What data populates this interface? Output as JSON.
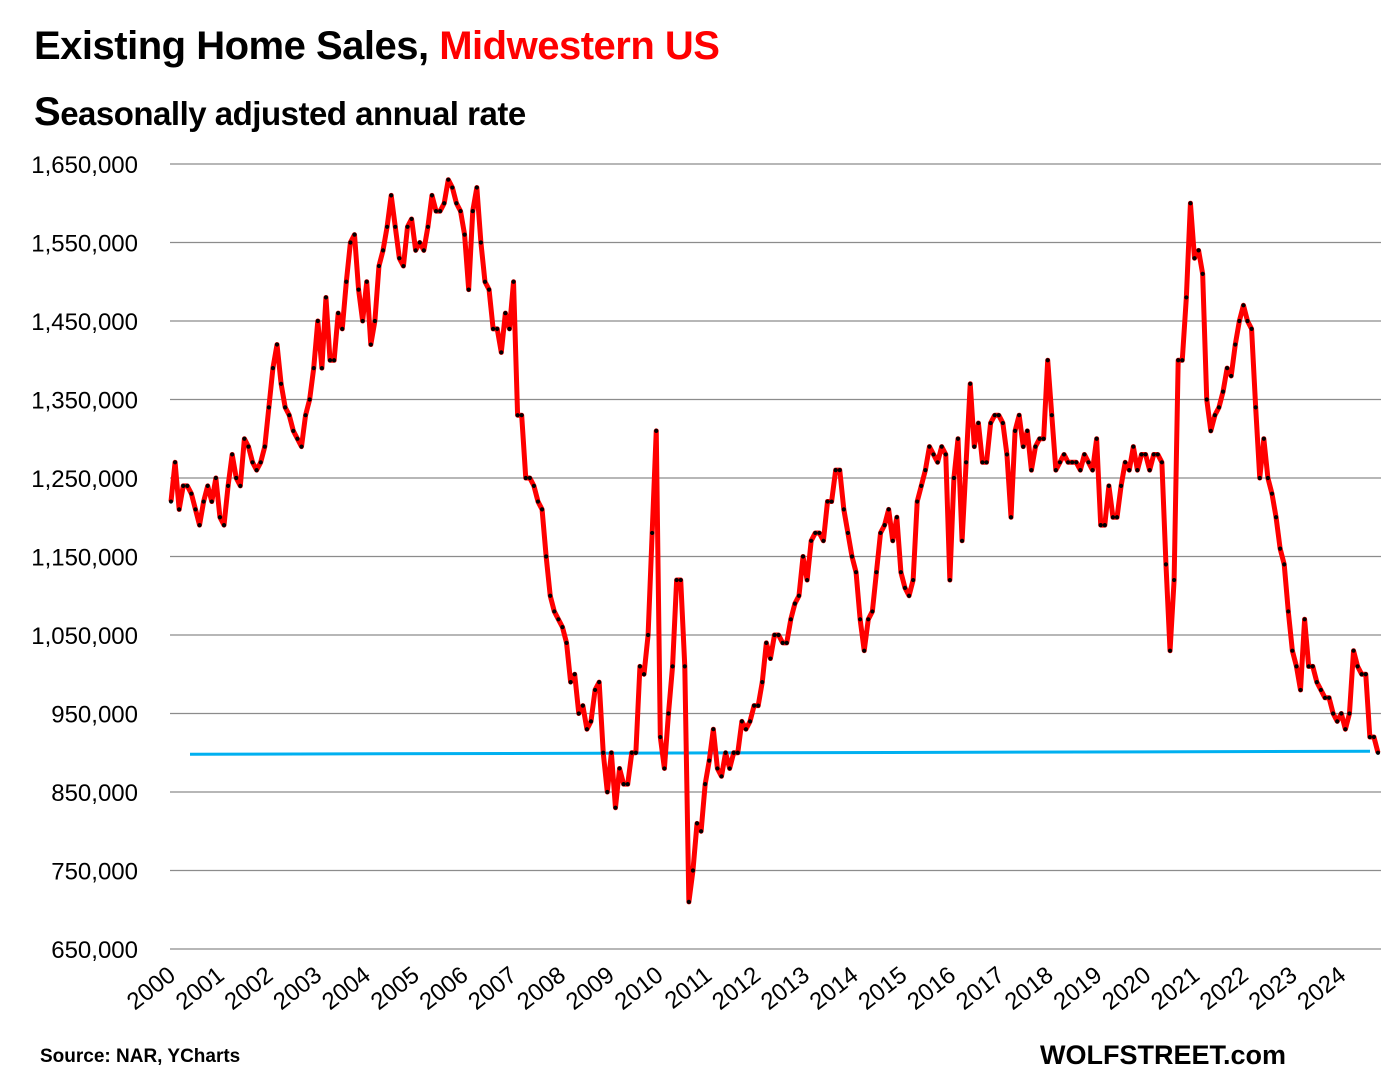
{
  "title": {
    "main": "Existing Home Sales,",
    "accent": "Midwestern US",
    "accent_color": "#ff0000"
  },
  "subtitle": {
    "first_letter": "S",
    "rest": "easonally adjusted annual rate"
  },
  "source": "Source: NAR, YCharts",
  "brand": "WOLFSTREET.com",
  "chart_data": {
    "type": "line",
    "ylim": [
      650000,
      1650000
    ],
    "yticks": [
      650000,
      750000,
      850000,
      950000,
      1050000,
      1150000,
      1250000,
      1350000,
      1450000,
      1550000,
      1650000
    ],
    "ytick_labels": [
      "650,000",
      "750,000",
      "850,000",
      "950,000",
      "1,050,000",
      "1,150,000",
      "1,250,000",
      "1,350,000",
      "1,450,000",
      "1,550,000",
      "1,650,000"
    ],
    "xtick_labels": [
      "2000",
      "2001",
      "2002",
      "2003",
      "2004",
      "2005",
      "2006",
      "2007",
      "2008",
      "2009",
      "2010",
      "2011",
      "2012",
      "2013",
      "2014",
      "2015",
      "2016",
      "2017",
      "2018",
      "2019",
      "2020",
      "2021",
      "2022",
      "2023",
      "2024"
    ],
    "grid": true,
    "legend": "none",
    "series_color": "#ff0000",
    "marker_color": "#000000",
    "reference_line": {
      "value": 900000,
      "color": "#00b0f0"
    },
    "values": [
      1220000,
      1270000,
      1210000,
      1240000,
      1240000,
      1230000,
      1210000,
      1190000,
      1220000,
      1240000,
      1220000,
      1250000,
      1200000,
      1190000,
      1240000,
      1280000,
      1250000,
      1240000,
      1300000,
      1290000,
      1270000,
      1260000,
      1270000,
      1290000,
      1340000,
      1390000,
      1420000,
      1370000,
      1340000,
      1330000,
      1310000,
      1300000,
      1290000,
      1330000,
      1350000,
      1390000,
      1450000,
      1390000,
      1480000,
      1400000,
      1400000,
      1460000,
      1440000,
      1500000,
      1550000,
      1560000,
      1490000,
      1450000,
      1500000,
      1420000,
      1450000,
      1520000,
      1540000,
      1570000,
      1610000,
      1570000,
      1530000,
      1520000,
      1570000,
      1580000,
      1540000,
      1550000,
      1540000,
      1570000,
      1610000,
      1590000,
      1590000,
      1600000,
      1630000,
      1620000,
      1600000,
      1590000,
      1560000,
      1490000,
      1590000,
      1620000,
      1550000,
      1500000,
      1490000,
      1440000,
      1440000,
      1410000,
      1460000,
      1440000,
      1500000,
      1330000,
      1330000,
      1250000,
      1250000,
      1240000,
      1220000,
      1210000,
      1150000,
      1100000,
      1080000,
      1070000,
      1060000,
      1040000,
      990000,
      1000000,
      950000,
      960000,
      930000,
      940000,
      980000,
      990000,
      900000,
      850000,
      900000,
      830000,
      880000,
      860000,
      860000,
      900000,
      900000,
      1010000,
      1000000,
      1050000,
      1180000,
      1310000,
      920000,
      880000,
      950000,
      1010000,
      1120000,
      1120000,
      1010000,
      710000,
      750000,
      810000,
      800000,
      860000,
      890000,
      930000,
      880000,
      870000,
      900000,
      880000,
      900000,
      900000,
      940000,
      930000,
      940000,
      960000,
      960000,
      990000,
      1040000,
      1020000,
      1050000,
      1050000,
      1040000,
      1040000,
      1070000,
      1090000,
      1100000,
      1150000,
      1120000,
      1170000,
      1180000,
      1180000,
      1170000,
      1220000,
      1220000,
      1260000,
      1260000,
      1210000,
      1180000,
      1150000,
      1130000,
      1070000,
      1030000,
      1070000,
      1080000,
      1130000,
      1180000,
      1190000,
      1210000,
      1170000,
      1200000,
      1130000,
      1110000,
      1100000,
      1120000,
      1220000,
      1240000,
      1260000,
      1290000,
      1280000,
      1270000,
      1290000,
      1280000,
      1120000,
      1250000,
      1300000,
      1170000,
      1270000,
      1370000,
      1290000,
      1320000,
      1270000,
      1270000,
      1320000,
      1330000,
      1330000,
      1320000,
      1280000,
      1200000,
      1310000,
      1330000,
      1290000,
      1310000,
      1260000,
      1290000,
      1300000,
      1300000,
      1400000,
      1330000,
      1260000,
      1270000,
      1280000,
      1270000,
      1270000,
      1270000,
      1260000,
      1280000,
      1270000,
      1260000,
      1300000,
      1190000,
      1190000,
      1240000,
      1200000,
      1200000,
      1240000,
      1270000,
      1260000,
      1290000,
      1260000,
      1280000,
      1280000,
      1260000,
      1280000,
      1280000,
      1270000,
      1140000,
      1030000,
      1120000,
      1400000,
      1400000,
      1480000,
      1600000,
      1530000,
      1540000,
      1510000,
      1350000,
      1310000,
      1330000,
      1340000,
      1360000,
      1390000,
      1380000,
      1420000,
      1450000,
      1470000,
      1450000,
      1440000,
      1340000,
      1250000,
      1300000,
      1250000,
      1230000,
      1200000,
      1160000,
      1140000,
      1080000,
      1030000,
      1010000,
      980000,
      1070000,
      1010000,
      1010000,
      990000,
      980000,
      970000,
      970000,
      950000,
      940000,
      950000,
      930000,
      950000,
      1030000,
      1010000,
      1000000,
      1000000,
      920000,
      920000,
      900000
    ]
  }
}
